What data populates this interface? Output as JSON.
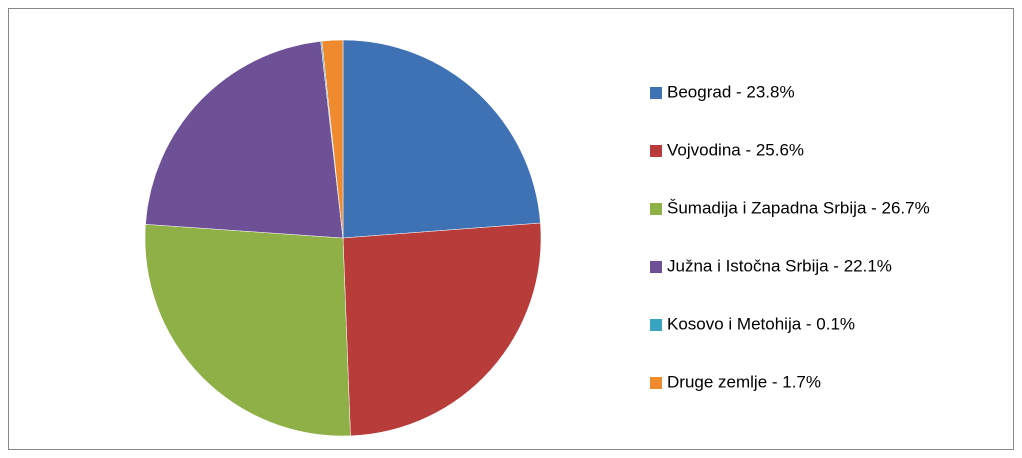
{
  "chart_data": {
    "type": "pie",
    "categories": [
      "Beograd - 23.8%",
      "Vojvodina - 25.6%",
      "Šumadija i Zapadna Srbija - 26.7%",
      "Južna i Istočna Srbija - 22.1%",
      "Kosovo i Metohija - 0.1%",
      "Druge zemlje - 1.7%"
    ],
    "values": [
      23.8,
      25.6,
      26.7,
      22.1,
      0.1,
      1.7
    ],
    "colors": [
      "#3f72b5",
      "#b83c3a",
      "#8fb046",
      "#6e5096",
      "#3aa3bf",
      "#f08a2e"
    ],
    "legend": "right"
  }
}
